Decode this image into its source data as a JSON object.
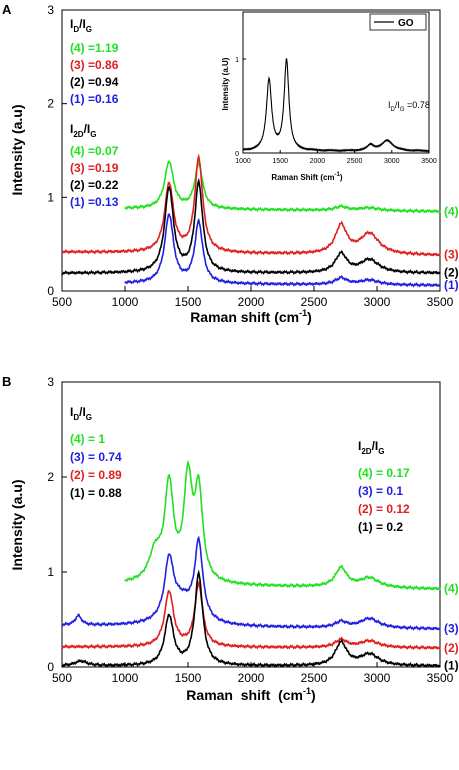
{
  "colors": {
    "s1": "#2020e0",
    "s2": "#000000",
    "s3": "#e02020",
    "s4": "#22e022",
    "inset": "#000000"
  },
  "chart_data": [
    {
      "panel": "A",
      "type": "line",
      "xlabel": "Raman shift (cm",
      "xlabel_sup": "-1",
      "xlabel_end": ")",
      "ylabel": "Intensity (a.u)",
      "xlim": [
        500,
        3500
      ],
      "ylim": [
        0,
        3
      ],
      "xticks": [
        "500",
        "1000",
        "1500",
        "2000",
        "2500",
        "3000",
        "3500"
      ],
      "yticks": [
        "0",
        "1",
        "2",
        "3"
      ],
      "ratio_title_d": {
        "main": "I",
        "sub1": "D",
        "mid": "/I",
        "sub2": "G"
      },
      "ratio_title_2d": {
        "main": "I",
        "sub1": "2D",
        "mid": "/I",
        "sub2": "G"
      },
      "ratio_d": [
        {
          "label": "(4) =1.19",
          "color": "s4"
        },
        {
          "label": "(3) =0.86",
          "color": "s3"
        },
        {
          "label": "(2) =0.94",
          "color": "s2"
        },
        {
          "label": "(1) =0.16",
          "color": "s1"
        }
      ],
      "ratio_2d": [
        {
          "label": "(4) =0.07",
          "color": "s4"
        },
        {
          "label": "(3) =0.19",
          "color": "s3"
        },
        {
          "label": "(2) =0.22",
          "color": "s2"
        },
        {
          "label": "(1) =0.13",
          "color": "s1"
        }
      ],
      "series": [
        {
          "name": "(4)",
          "color": "s4",
          "xstart": 1000,
          "baseline": 0.85,
          "d": 0.5,
          "g": 0.47,
          "d2": 0.04,
          "dg": 0.03,
          "slope": 0.03
        },
        {
          "name": "(3)",
          "color": "s3",
          "xstart": 500,
          "baseline": 0.38,
          "d": 0.73,
          "g": 1.0,
          "d2": 0.3,
          "dg": 0.22,
          "slope": 0.03
        },
        {
          "name": "(2)",
          "color": "s2",
          "xstart": 500,
          "baseline": 0.19,
          "d": 0.9,
          "g": 0.95,
          "d2": 0.2,
          "dg": 0.14,
          "slope": 0.0
        },
        {
          "name": "(1)",
          "color": "s1",
          "xstart": 1000,
          "baseline": 0.06,
          "d": 0.73,
          "g": 0.65,
          "d2": 0.07,
          "dg": 0.05,
          "slope": 0.02
        }
      ],
      "inset": {
        "legend": "GO",
        "ratio": {
          "main": "I",
          "sub1": "D",
          "mid": "/I",
          "sub2": "G",
          "value": " =0.78"
        },
        "xlabel": "Raman Shift (cm",
        "xlabel_sup": "-1",
        "xlabel_end": ")",
        "ylabel": "Intensity (a.U)",
        "xlim": [
          1000,
          3500
        ],
        "ylim": [
          0,
          1.5
        ],
        "xticks": [
          "1000",
          "1500",
          "2000",
          "2500",
          "3000",
          "3500"
        ],
        "yticks": [
          "0",
          "1"
        ],
        "series": {
          "xstart": 1000,
          "baseline": 0.02,
          "d": 0.75,
          "g": 0.96,
          "d2": 0.06,
          "dg": 0.11,
          "slope": 0.0
        }
      }
    },
    {
      "panel": "B",
      "type": "line",
      "xlabel": "Raman  shift  (cm",
      "xlabel_sup": "-1",
      "xlabel_end": ")",
      "ylabel": "Intensity (a.u)",
      "xlim": [
        500,
        3500
      ],
      "ylim": [
        0,
        3
      ],
      "xticks": [
        "500",
        "1000",
        "1500",
        "2000",
        "2500",
        "3000",
        "3500"
      ],
      "yticks": [
        "0",
        "1",
        "2",
        "3"
      ],
      "ratio_title_d": {
        "main": "I",
        "sub1": "D",
        "mid": "/I",
        "sub2": "G"
      },
      "ratio_title_2d": {
        "main": "I",
        "sub1": "2D",
        "mid": "/I",
        "sub2": "G"
      },
      "ratio_d": [
        {
          "label": "(4) = 1",
          "color": "s4"
        },
        {
          "label": "(3) = 0.74",
          "color": "s1"
        },
        {
          "label": "(2) = 0.89",
          "color": "s3"
        },
        {
          "label": "(1) = 0.88",
          "color": "s2"
        }
      ],
      "ratio_2d": [
        {
          "label": "(4) = 0.17",
          "color": "s4"
        },
        {
          "label": "(3) = 0.1",
          "color": "s1"
        },
        {
          "label": "(2) = 0.12",
          "color": "s3"
        },
        {
          "label": "(1) = 0.2",
          "color": "s2"
        }
      ],
      "series": [
        {
          "name": "(4)",
          "color": "s4",
          "xstart": 1000,
          "baseline": 0.82,
          "d": 1.0,
          "g": 0.92,
          "d2": 0.2,
          "dg": 0.1,
          "slope": 0.05,
          "extra": [
            [
              1500,
              1.05,
              40
            ],
            [
              1240,
              0.3,
              60
            ]
          ]
        },
        {
          "name": "(3)",
          "color": "s1",
          "xstart": 500,
          "baseline": 0.4,
          "d": 0.6,
          "g": 0.8,
          "d2": 0.06,
          "dg": 0.1,
          "slope": 0.03,
          "extra": [
            [
              630,
              0.1,
              30
            ],
            [
              1450,
              0.25,
              120
            ]
          ]
        },
        {
          "name": "(2)",
          "color": "s3",
          "xstart": 500,
          "baseline": 0.2,
          "d": 0.58,
          "g": 0.65,
          "d2": 0.08,
          "dg": 0.07,
          "slope": 0.01
        },
        {
          "name": "(1)",
          "color": "s2",
          "xstart": 500,
          "baseline": 0.01,
          "d": 0.52,
          "g": 0.96,
          "d2": 0.24,
          "dg": 0.12,
          "slope": 0.0,
          "extra": [
            [
              650,
              0.05,
              60
            ]
          ]
        }
      ]
    }
  ]
}
